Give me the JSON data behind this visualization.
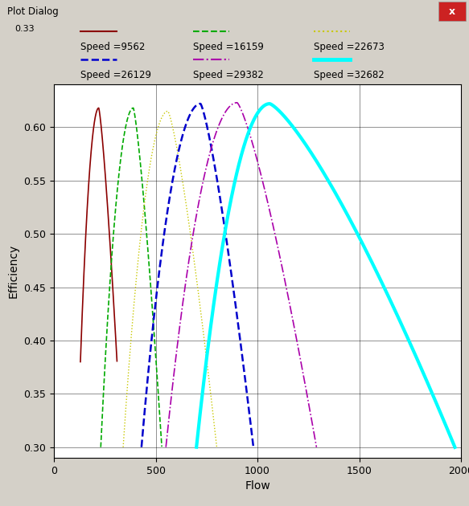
{
  "title": "Plot Dialog",
  "xlabel": "Flow",
  "ylabel": "Efficiency",
  "xlim": [
    0,
    2000
  ],
  "ylim": [
    0.29,
    0.64
  ],
  "yticks": [
    0.3,
    0.35,
    0.4,
    0.45,
    0.5,
    0.55,
    0.6
  ],
  "xticks": [
    0,
    500,
    1000,
    1500,
    2000
  ],
  "background_color": "#d4d0c8",
  "plot_bg_color": "#ffffff",
  "legend_row1": [
    {
      "label": "Speed =9562",
      "color": "#8b0000",
      "linestyle": "solid",
      "linewidth": 1.5
    },
    {
      "label": "Speed =16159",
      "color": "#00aa00",
      "linestyle": "dashed",
      "linewidth": 1.5
    },
    {
      "label": "Speed =22673",
      "color": "#c8c800",
      "linestyle": "dotted",
      "linewidth": 1.5
    }
  ],
  "legend_row2": [
    {
      "label": "Speed =26129",
      "color": "#0000cc",
      "linestyle": "dashed",
      "linewidth": 1.8
    },
    {
      "label": "Speed =29382",
      "color": "#aa00aa",
      "linestyle": "dashdot",
      "linewidth": 1.5
    },
    {
      "label": "Speed =32682",
      "color": "#00ffff",
      "linestyle": "solid",
      "linewidth": 3.5
    }
  ],
  "curve_params": [
    {
      "x_start": 130,
      "x_end": 310,
      "peak_x": 220,
      "peak_y": 0.618,
      "color": "#8b0000",
      "ls": "solid",
      "lw": 1.2,
      "base_y": 0.38,
      "rise_exp": 2.0,
      "fall_exp": 1.3
    },
    {
      "x_start": 230,
      "x_end": 530,
      "peak_x": 390,
      "peak_y": 0.618,
      "color": "#00aa00",
      "ls": "dashed",
      "lw": 1.2,
      "base_y": 0.3,
      "rise_exp": 2.0,
      "fall_exp": 1.3
    },
    {
      "x_start": 340,
      "x_end": 800,
      "peak_x": 560,
      "peak_y": 0.615,
      "color": "#c8c800",
      "ls": "dotted",
      "lw": 1.0,
      "base_y": 0.3,
      "rise_exp": 2.0,
      "fall_exp": 1.3
    },
    {
      "x_start": 430,
      "x_end": 980,
      "peak_x": 720,
      "peak_y": 0.622,
      "color": "#0000cc",
      "ls": "dashed",
      "lw": 1.8,
      "base_y": 0.3,
      "rise_exp": 2.0,
      "fall_exp": 1.3
    },
    {
      "x_start": 550,
      "x_end": 1290,
      "peak_x": 900,
      "peak_y": 0.623,
      "color": "#aa00aa",
      "ls": "dashdot",
      "lw": 1.2,
      "base_y": 0.3,
      "rise_exp": 2.0,
      "fall_exp": 1.3
    },
    {
      "x_start": 700,
      "x_end": 1970,
      "peak_x": 1060,
      "peak_y": 0.622,
      "color": "#00ffff",
      "ls": "solid",
      "lw": 3.0,
      "base_y": 0.3,
      "rise_exp": 2.0,
      "fall_exp": 1.3
    }
  ]
}
